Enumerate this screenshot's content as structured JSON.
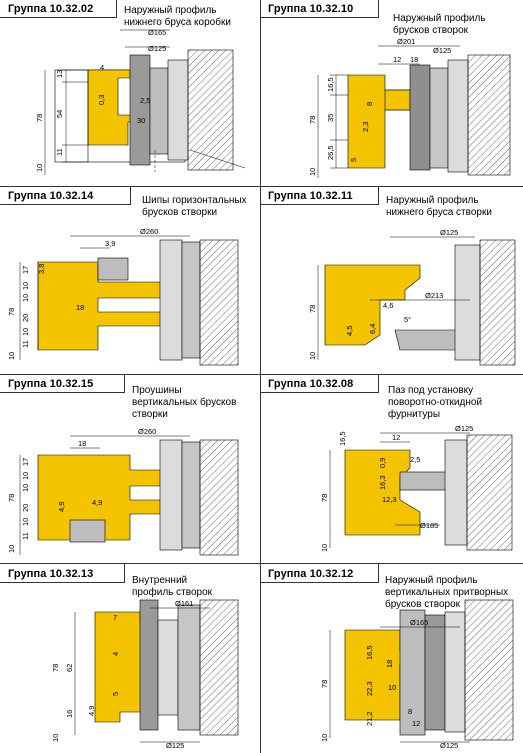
{
  "colors": {
    "profile": "#f5c400",
    "steel": "#8f8f8f",
    "line": "#000000",
    "hatch": "#444444"
  },
  "panels": [
    {
      "group": "Группа 10.32.02",
      "title": [
        "Наружный профиль",
        "нижнего бруса коробки"
      ],
      "dims": {
        "d1": "Ø165",
        "d2": "Ø125",
        "h1": "13",
        "h2": "54",
        "h3": "11",
        "total": "78",
        "base": "10",
        "a": "4",
        "b": "0,3",
        "c": "2,5",
        "d": "30"
      }
    },
    {
      "group": "Группа 10.32.10",
      "title": [
        "Наружный профиль",
        "брусков створок"
      ],
      "dims": {
        "d1": "Ø201",
        "d2": "Ø125",
        "h1": "16,5",
        "h2": "35",
        "h3": "26,5",
        "total": "78",
        "base": "10",
        "a": "12",
        "b": "18",
        "c": "8",
        "d": "2,3",
        "e": "5"
      }
    },
    {
      "group": "Группа 10.32.14",
      "title": [
        "Шипы горизонтальных",
        "брусков створки"
      ],
      "dims": {
        "d1": "Ø260",
        "a": "3,9",
        "h1": "17",
        "h2": "10",
        "h3": "10",
        "h4": "20",
        "h5": "10",
        "h6": "11",
        "total": "78",
        "base": "10",
        "b": "3,8",
        "c": "18"
      }
    },
    {
      "group": "Группа 10.32.11",
      "title": [
        "Наружный профиль",
        "нижнего бруса створки"
      ],
      "dims": {
        "d1": "Ø125",
        "d2": "Ø213",
        "total": "78",
        "base": "10",
        "a": "4,6",
        "b": "6,4",
        "c": "4,5",
        "ang": "5°"
      }
    },
    {
      "group": "Группа 10.32.15",
      "title": [
        "Проушины",
        "вертикальных брусков",
        "створки"
      ],
      "dims": {
        "d1": "Ø260",
        "a": "18",
        "h1": "17",
        "h2": "10",
        "h3": "10",
        "h4": "20",
        "h5": "10",
        "h6": "11",
        "total": "78",
        "base": "10",
        "b": "4,9",
        "c": "4,9"
      }
    },
    {
      "group": "Группа 10.32.08",
      "title": [
        "Паз под установку",
        "поворотно-откидной",
        "фурнитуры"
      ],
      "dims": {
        "d1": "Ø125",
        "d2": "Ø185",
        "a": "16,5",
        "b": "12",
        "c": "0,9",
        "d": "2,5",
        "e": "16,3",
        "f": "12,3",
        "total": "78",
        "base": "10"
      }
    },
    {
      "group": "Группа 10.32.13",
      "title": [
        "Внутренний",
        "профиль створок"
      ],
      "dims": {
        "d1": "Ø161",
        "d2": "Ø125",
        "a": "7",
        "b": "4",
        "c": "5",
        "d": "4,9",
        "h1": "62",
        "total": "78",
        "base": "10",
        "h2": "16"
      }
    },
    {
      "group": "Группа 10.32.12",
      "title": [
        "Наружный профиль",
        "вертикальных притворных",
        "брусков створок"
      ],
      "dims": {
        "d1": "Ø165",
        "d2": "Ø125",
        "h1": "16,5",
        "h2": "22,3",
        "h3": "21,2",
        "a": "18",
        "b": "10",
        "c": "8",
        "d": "12",
        "total": "78",
        "base": "10"
      }
    }
  ]
}
